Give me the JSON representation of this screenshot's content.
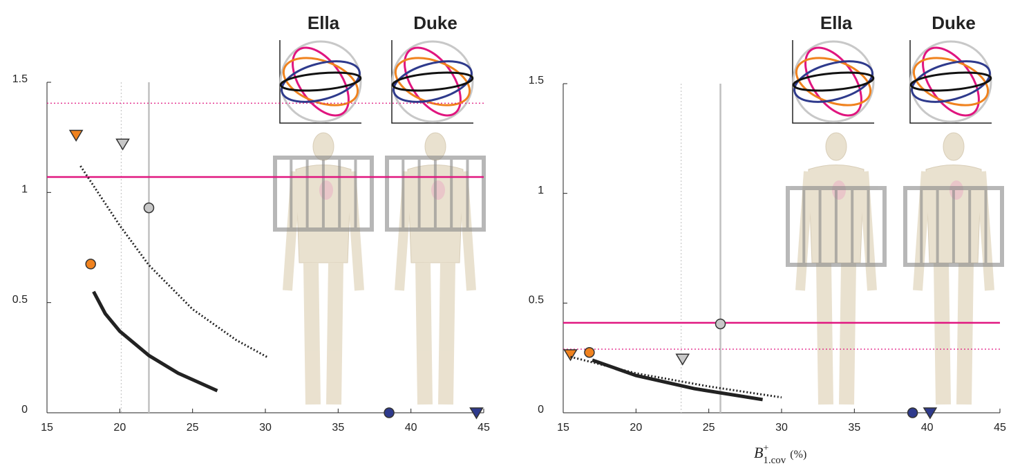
{
  "chart_data": [
    {
      "type": "scatter",
      "xlim": [
        15,
        45
      ],
      "ylim": [
        0,
        1.5
      ],
      "xticks": [
        15,
        20,
        25,
        30,
        35,
        40,
        45
      ],
      "yticks": [
        0,
        0.5,
        1,
        1.5
      ],
      "insets": [
        "Ella",
        "Duke"
      ],
      "hlines": [
        {
          "value": 1.07,
          "color": "#e0157f",
          "style": "solid"
        },
        {
          "value": 1.405,
          "color": "#e0157f",
          "style": "dotted"
        }
      ],
      "vlines": [
        {
          "value": 22,
          "color": "#c0c0c0",
          "style": "solid"
        },
        {
          "value": 20.1,
          "color": "#c8c8c8",
          "style": "dotted"
        }
      ],
      "series": [
        {
          "marker": "triangle",
          "color": "#f0821e",
          "x": [
            17
          ],
          "values": [
            1.26
          ]
        },
        {
          "marker": "triangle",
          "color": "#c8c8c8",
          "x": [
            20.2
          ],
          "values": [
            1.22
          ]
        },
        {
          "marker": "circle",
          "color": "#c8c8c8",
          "x": [
            22
          ],
          "values": [
            0.93
          ]
        },
        {
          "marker": "circle",
          "color": "#f0821e",
          "x": [
            18
          ],
          "values": [
            0.675
          ]
        },
        {
          "marker": "circle",
          "color": "#2e3a8c",
          "x": [
            38.5
          ],
          "values": [
            0
          ]
        },
        {
          "marker": "triangle",
          "color": "#2e3a8c",
          "x": [
            44.5
          ],
          "values": [
            0
          ]
        },
        {
          "marker": "line",
          "style": "dotted",
          "color": "#222",
          "x": [
            17.3,
            20,
            22,
            25,
            28,
            30.2
          ],
          "values": [
            1.12,
            0.85,
            0.67,
            0.47,
            0.33,
            0.25
          ]
        },
        {
          "marker": "line",
          "style": "solid",
          "color": "#222",
          "x": [
            18.2,
            19,
            20,
            22,
            24,
            26.7
          ],
          "values": [
            0.55,
            0.45,
            0.37,
            0.26,
            0.18,
            0.1
          ]
        }
      ]
    },
    {
      "type": "scatter",
      "xlim": [
        15,
        45
      ],
      "ylim": [
        0,
        1.5
      ],
      "xticks": [
        15,
        20,
        25,
        30,
        35,
        40,
        45
      ],
      "yticks": [
        0,
        0.5,
        1,
        1.5
      ],
      "insets": [
        "Ella",
        "Duke"
      ],
      "xlabel": {
        "base": "B",
        "sup": "+",
        "sub": "1.cov",
        "unit": "(%)"
      },
      "hlines": [
        {
          "value": 0.41,
          "color": "#e0157f",
          "style": "solid"
        },
        {
          "value": 0.29,
          "color": "#e0157f",
          "style": "dotted"
        }
      ],
      "vlines": [
        {
          "value": 25.8,
          "color": "#c0c0c0",
          "style": "solid"
        },
        {
          "value": 23.1,
          "color": "#c8c8c8",
          "style": "dotted"
        }
      ],
      "series": [
        {
          "marker": "triangle",
          "color": "#f0821e",
          "x": [
            15.5
          ],
          "values": [
            0.265
          ]
        },
        {
          "marker": "circle",
          "color": "#f0821e",
          "x": [
            16.8
          ],
          "values": [
            0.275
          ]
        },
        {
          "marker": "triangle",
          "color": "#c8c8c8",
          "x": [
            23.2
          ],
          "values": [
            0.245
          ]
        },
        {
          "marker": "circle",
          "color": "#c8c8c8",
          "x": [
            25.8
          ],
          "values": [
            0.405
          ]
        },
        {
          "marker": "circle",
          "color": "#2e3a8c",
          "x": [
            39
          ],
          "values": [
            0
          ]
        },
        {
          "marker": "triangle",
          "color": "#2e3a8c",
          "x": [
            40.2
          ],
          "values": [
            0
          ]
        },
        {
          "marker": "line",
          "style": "dotted",
          "color": "#222",
          "x": [
            15.5,
            20,
            25,
            30
          ],
          "values": [
            0.255,
            0.18,
            0.12,
            0.07
          ]
        },
        {
          "marker": "line",
          "style": "solid",
          "color": "#222",
          "x": [
            17,
            20,
            24,
            28.7
          ],
          "values": [
            0.24,
            0.17,
            0.11,
            0.06
          ]
        }
      ]
    }
  ]
}
